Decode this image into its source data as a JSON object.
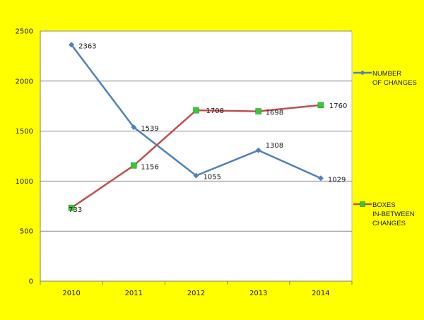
{
  "chart_data": {
    "type": "line",
    "title": "",
    "xlabel": "",
    "ylabel": "",
    "categories": [
      "2010",
      "2011",
      "2012",
      "2013",
      "2014"
    ],
    "ylim": [
      0,
      2500
    ],
    "yticks": [
      "0",
      "500",
      "1000",
      "1500",
      "2000",
      "2500"
    ],
    "grid": "horizontal",
    "legend_position": "right",
    "series": [
      {
        "name": "NUMBER OF CHANGES",
        "legend_lines": [
          "NUMBER",
          "OF CHANGES"
        ],
        "values": [
          2363,
          1539,
          1055,
          1308,
          1029
        ],
        "labels": [
          "2363",
          "1539",
          "1055",
          "1308",
          "1029"
        ],
        "color": "#4F81BD",
        "marker": "diamond",
        "marker_color": "#4F81BD"
      },
      {
        "name": "BOXES IN-BETWEEN CHANGES",
        "legend_lines": [
          "BOXES",
          "IN-BETWEEN",
          "CHANGES"
        ],
        "values": [
          733,
          1156,
          1708,
          1698,
          1760
        ],
        "labels": [
          "733",
          "1156",
          "1708",
          "1698",
          "1760"
        ],
        "color": "#C0504D",
        "marker": "square",
        "marker_color": "#33CC33"
      }
    ]
  },
  "colors": {
    "page_background": "#FFFF00",
    "plot_background": "#FFFFFF",
    "gridline": "#888888"
  }
}
